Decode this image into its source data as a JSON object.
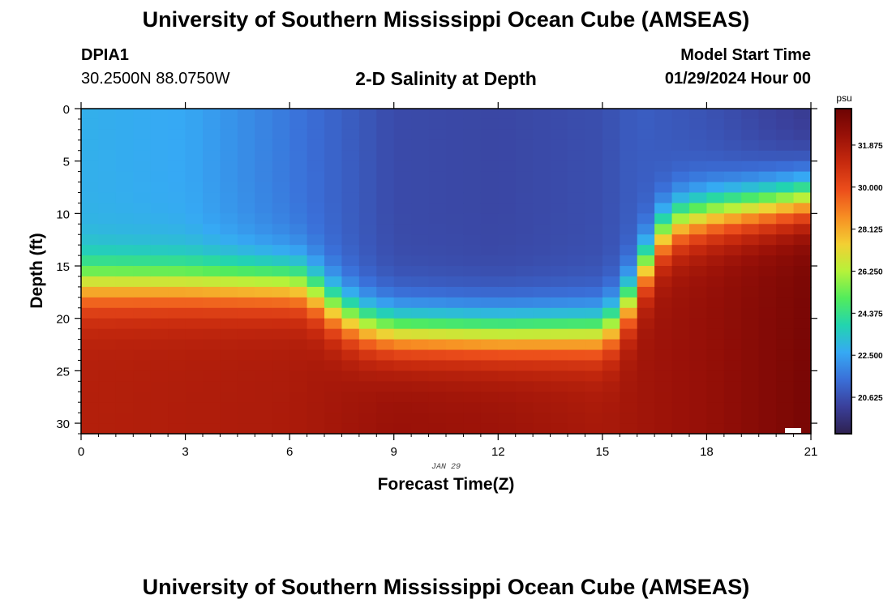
{
  "header": {
    "title": "University of Southern Mississippi Ocean Cube (AMSEAS)",
    "station_id": "DPIA1",
    "station_coords": "30.2500N  88.0750W",
    "subtitle": "2-D Salinity at Depth",
    "model_start_label": "Model Start Time",
    "model_start_value": "01/29/2024 Hour 00"
  },
  "footer": {
    "title": "University of Southern Mississippi Ocean Cube (AMSEAS)"
  },
  "colors": {
    "ramp": [
      "#2e2150",
      "#3a3f9a",
      "#3a6fd8",
      "#36a9f4",
      "#22d4b0",
      "#52ec5c",
      "#b6f23a",
      "#f3cf33",
      "#f78e23",
      "#ec4e1b",
      "#c72a0e",
      "#991108",
      "#6d0303"
    ]
  },
  "chart_data": {
    "type": "heatmap",
    "title": "2-D Salinity at Depth",
    "xlabel": "Forecast Time(Z)",
    "ylabel": "Depth (ft)",
    "x_ticks": [
      0,
      3,
      6,
      9,
      12,
      15,
      18,
      21
    ],
    "y_ticks": [
      0,
      5,
      10,
      15,
      20,
      25,
      30
    ],
    "xlim": [
      0,
      21
    ],
    "ylim": [
      31,
      0
    ],
    "date_label": "JAN 29",
    "colorbar": {
      "unit": "psu",
      "range": [
        19.0,
        33.5
      ],
      "ticks": [
        "31.875",
        "30.000",
        "28.125",
        "26.250",
        "24.375",
        "22.500",
        "20.625"
      ],
      "tick_values": [
        31.875,
        30.0,
        28.125,
        26.25,
        24.375,
        22.5,
        20.625
      ]
    },
    "halocline_depth_ft": {
      "hours": [
        0,
        3,
        6,
        6.5,
        7,
        8,
        9,
        12,
        15,
        15.5,
        16,
        16.5,
        17,
        18,
        19,
        20,
        21
      ],
      "depth": [
        16.8,
        16.8,
        16.8,
        17,
        18.5,
        20.5,
        21.2,
        21.4,
        21.3,
        20,
        17,
        13,
        11,
        10,
        9.5,
        9,
        8.5
      ]
    },
    "surface_salinity_psu": {
      "hours": [
        0,
        3,
        6,
        9,
        12,
        15,
        16,
        18,
        21
      ],
      "value": [
        22.8,
        22.6,
        21.6,
        20.5,
        20.4,
        20.6,
        21.0,
        20.7,
        20.0
      ]
    },
    "bottom_salinity_psu": {
      "hours": [
        0,
        6,
        9,
        12,
        15,
        18,
        21
      ],
      "value": [
        31.6,
        31.8,
        32.3,
        32.2,
        31.9,
        32.4,
        33.2
      ]
    }
  }
}
